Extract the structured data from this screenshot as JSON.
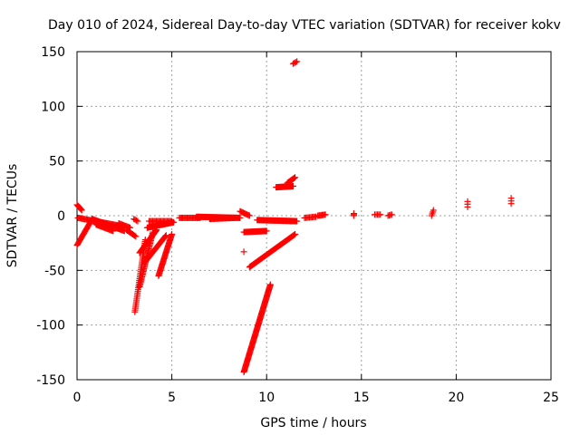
{
  "chart_data": {
    "type": "scatter",
    "title": "Day 010 of 2024, Sidereal Day-to-day VTEC variation (SDTVAR) for receiver kokv",
    "xlabel": "GPS time / hours",
    "ylabel": "SDTVAR / TECUs",
    "xlim": [
      0,
      25
    ],
    "ylim": [
      -150,
      150
    ],
    "xticks": [
      "0",
      "5",
      "10",
      "15",
      "20",
      "25"
    ],
    "yticks": [
      "-150",
      "-100",
      "-50",
      "0",
      "50",
      "100",
      "150"
    ],
    "grid": true,
    "marker": "plus",
    "color": "#ff0000",
    "segments": [
      {
        "x0": 0.0,
        "y0": 10,
        "x1": 0.25,
        "y1": 5,
        "n": 8
      },
      {
        "x0": 0.05,
        "y0": -2,
        "x1": 2.5,
        "y1": -10,
        "n": 45
      },
      {
        "x0": 0.0,
        "y0": -27,
        "x1": 0.8,
        "y1": -3,
        "n": 25
      },
      {
        "x0": 0.8,
        "y0": -3,
        "x1": 2.5,
        "y1": -14,
        "n": 35
      },
      {
        "x0": 1.0,
        "y0": -8,
        "x1": 1.9,
        "y1": -14,
        "n": 20
      },
      {
        "x0": 2.2,
        "y0": -7,
        "x1": 2.8,
        "y1": -11,
        "n": 12
      },
      {
        "x0": 2.6,
        "y0": -13,
        "x1": 3.1,
        "y1": -19,
        "n": 10
      },
      {
        "x0": 3.0,
        "y0": -3,
        "x1": 3.2,
        "y1": -5,
        "n": 4
      },
      {
        "x0": 3.05,
        "y0": -88,
        "x1": 3.6,
        "y1": -22,
        "n": 40
      },
      {
        "x0": 3.3,
        "y0": -65,
        "x1": 4.0,
        "y1": -15,
        "n": 40
      },
      {
        "x0": 3.3,
        "y0": -34,
        "x1": 4.2,
        "y1": -13,
        "n": 30
      },
      {
        "x0": 3.6,
        "y0": -42,
        "x1": 4.7,
        "y1": -18,
        "n": 30
      },
      {
        "x0": 4.3,
        "y0": -55,
        "x1": 5.0,
        "y1": -17,
        "n": 40
      },
      {
        "x0": 3.7,
        "y0": -11,
        "x1": 5.1,
        "y1": -6,
        "n": 35
      },
      {
        "x0": 3.8,
        "y0": -5,
        "x1": 5.0,
        "y1": -5,
        "n": 20
      },
      {
        "x0": 5.4,
        "y0": -2,
        "x1": 6.5,
        "y1": -2,
        "n": 20
      },
      {
        "x0": 6.3,
        "y0": -1,
        "x1": 8.6,
        "y1": -2,
        "n": 55
      },
      {
        "x0": 7.0,
        "y0": -3,
        "x1": 8.3,
        "y1": -2,
        "n": 25
      },
      {
        "x0": 8.6,
        "y0": 4,
        "x1": 9.1,
        "y1": 0,
        "n": 10
      },
      {
        "x0": 8.8,
        "y0": -33,
        "x1": 8.8,
        "y1": -33,
        "n": 1
      },
      {
        "x0": 8.8,
        "y0": -143,
        "x1": 10.2,
        "y1": -63,
        "n": 90
      },
      {
        "x0": 8.8,
        "y0": -15,
        "x1": 10.0,
        "y1": -14,
        "n": 30
      },
      {
        "x0": 9.5,
        "y0": -4,
        "x1": 11.6,
        "y1": -5,
        "n": 50
      },
      {
        "x0": 9.1,
        "y0": -47,
        "x1": 11.5,
        "y1": -17,
        "n": 60
      },
      {
        "x0": 10.5,
        "y0": 26,
        "x1": 11.4,
        "y1": 27,
        "n": 25
      },
      {
        "x0": 11.1,
        "y0": 30,
        "x1": 11.5,
        "y1": 35,
        "n": 10
      },
      {
        "x0": 11.4,
        "y0": 139,
        "x1": 11.6,
        "y1": 141,
        "n": 4
      },
      {
        "x0": 12.0,
        "y0": -2,
        "x1": 12.6,
        "y1": -1,
        "n": 10
      },
      {
        "x0": 12.7,
        "y0": 0,
        "x1": 13.1,
        "y1": 1,
        "n": 8
      },
      {
        "x0": 14.6,
        "y0": 0,
        "x1": 14.6,
        "y1": 2,
        "n": 3
      },
      {
        "x0": 15.7,
        "y0": 1,
        "x1": 16.0,
        "y1": 1,
        "n": 5
      },
      {
        "x0": 16.4,
        "y0": 0,
        "x1": 16.6,
        "y1": 1,
        "n": 4
      },
      {
        "x0": 18.7,
        "y0": 0,
        "x1": 18.8,
        "y1": 5,
        "n": 4
      },
      {
        "x0": 20.6,
        "y0": 8,
        "x1": 20.6,
        "y1": 13,
        "n": 3
      },
      {
        "x0": 22.9,
        "y0": 11,
        "x1": 22.9,
        "y1": 16,
        "n": 3
      }
    ]
  }
}
